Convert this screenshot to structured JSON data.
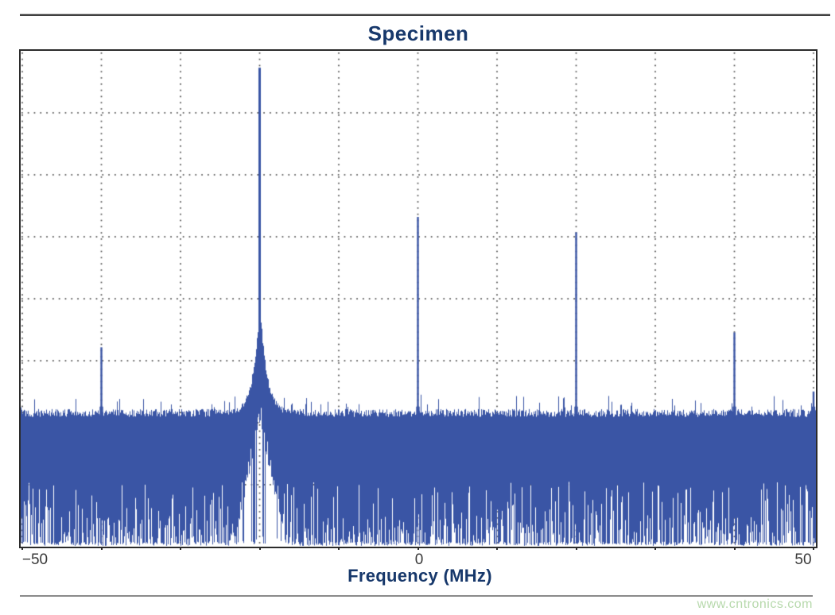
{
  "page": {
    "watermark": "www.cntronics.com"
  },
  "chart_data": {
    "type": "line",
    "subtype": "fft-spectrum",
    "title": "Specimen",
    "xlabel": "Frequency (MHz)",
    "ylabel": "",
    "y_axis_labels": "none",
    "xlim": [
      -50,
      50
    ],
    "x_tick_labels": [
      "−50",
      "0",
      "50"
    ],
    "x_tick_values": [
      -50,
      0,
      50
    ],
    "grid_step_mhz": 10,
    "h_gridline_count": 7,
    "grid_style": "dotted",
    "colors": {
      "trace": "#3A55A5",
      "grid_dot": "#4d4d4d",
      "border": "#2b2b2b",
      "title": "#17386B",
      "tick_label": "#3a3a3a",
      "watermark": "#b7d9ac"
    },
    "noise_floor_top_frac": 0.732,
    "noise_solid_band_frac": 0.12,
    "carrier_notch_below": true,
    "spurs": [
      {
        "freq_mhz": -40,
        "peak_frac": 0.598,
        "is_carrier": false
      },
      {
        "freq_mhz": -20,
        "peak_frac": 0.034,
        "is_carrier": true
      },
      {
        "freq_mhz": 0,
        "peak_frac": 0.335,
        "is_carrier": false
      },
      {
        "freq_mhz": 20,
        "peak_frac": 0.366,
        "is_carrier": false
      },
      {
        "freq_mhz": 40,
        "peak_frac": 0.568,
        "is_carrier": false
      },
      {
        "freq_mhz": 50,
        "peak_frac": 0.687,
        "is_carrier": false
      }
    ]
  }
}
